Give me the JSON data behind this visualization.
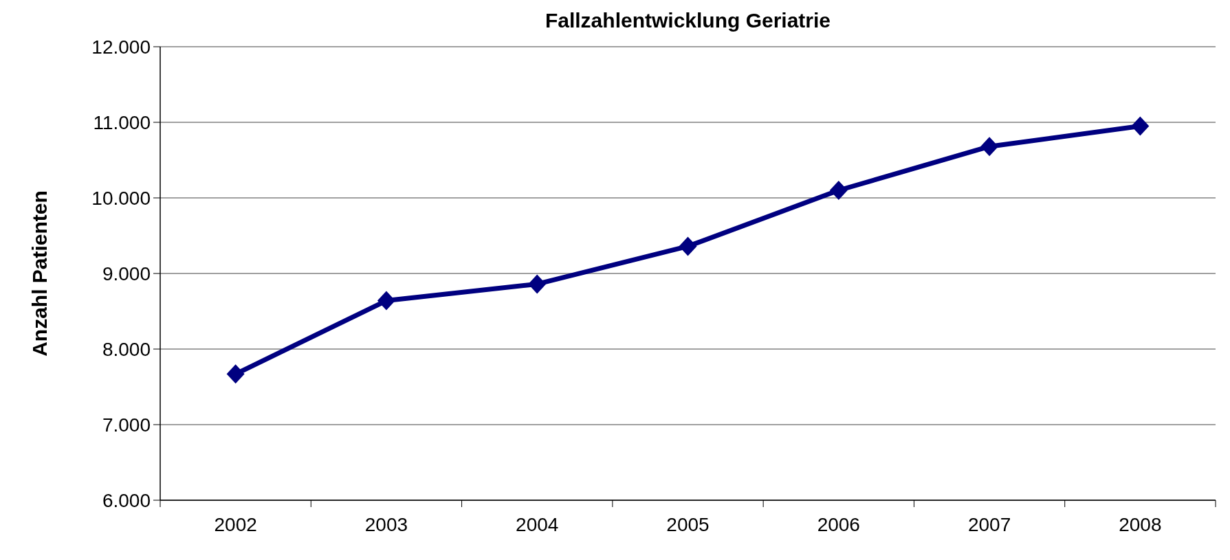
{
  "chart_data": {
    "type": "line",
    "title": "Fallzahlentwicklung Geriatrie",
    "ylabel": "Anzahl Patienten",
    "categories": [
      "2002",
      "2003",
      "2004",
      "2005",
      "2006",
      "2007",
      "2008"
    ],
    "series": [
      {
        "color": "#000080",
        "values": [
          7670,
          8640,
          8860,
          9360,
          10100,
          10680,
          10950
        ]
      }
    ],
    "ylim": [
      6000,
      12000
    ],
    "yticks": [
      {
        "value": 6000,
        "label": "6.000"
      },
      {
        "value": 7000,
        "label": "7.000"
      },
      {
        "value": 8000,
        "label": "8.000"
      },
      {
        "value": 9000,
        "label": "9.000"
      },
      {
        "value": 10000,
        "label": "10.000"
      },
      {
        "value": 11000,
        "label": "11.000"
      },
      {
        "value": 12000,
        "label": "12.000"
      }
    ],
    "grid": "y",
    "marker": "diamond",
    "line_style": "solid"
  }
}
